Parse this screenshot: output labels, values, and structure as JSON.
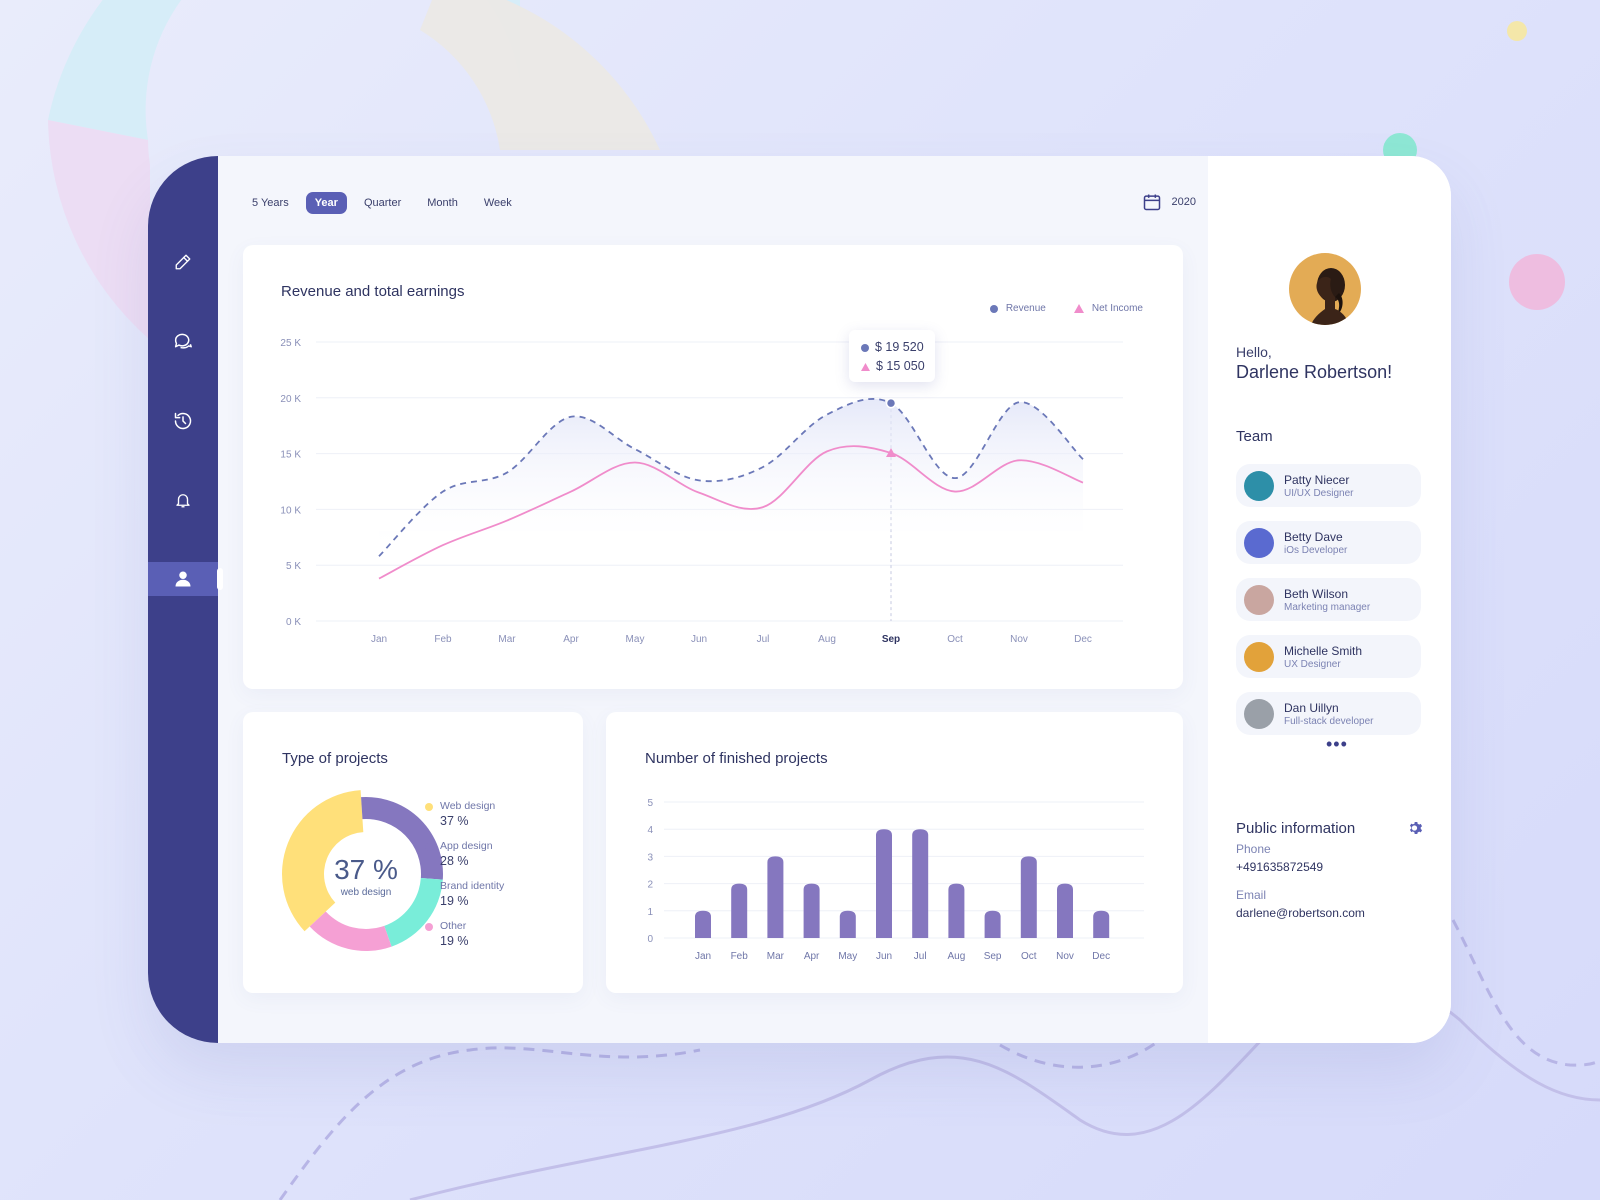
{
  "colors": {
    "sidebar": "#3d408a",
    "accent": "#5a5fb5",
    "revenue": "#6b78b8",
    "net_income": "#f08ccb",
    "bar": "#8577bf",
    "web_design": "#ffe07a",
    "app_design": "#8577bf",
    "brand_identity": "#79edd9",
    "other": "#f5a0d4"
  },
  "sidebar": {
    "items": [
      {
        "icon": "pencil-icon"
      },
      {
        "icon": "chat-icon"
      },
      {
        "icon": "history-icon"
      },
      {
        "icon": "bell-icon"
      },
      {
        "icon": "user-icon",
        "active": true
      }
    ]
  },
  "period_tabs": [
    {
      "label": "5 Years"
    },
    {
      "label": "Year",
      "active": true
    },
    {
      "label": "Quarter"
    },
    {
      "label": "Month"
    },
    {
      "label": "Week"
    }
  ],
  "year_selector": {
    "icon": "calendar-icon",
    "value": "2020"
  },
  "revenue_chart": {
    "title": "Revenue and total earnings",
    "tooltip": {
      "revenue": "$ 19 520",
      "net_income": "$ 15 050"
    },
    "selected_month": "Sep"
  },
  "type_chart": {
    "title": "Type of projects",
    "center_value": "37 %",
    "center_label": "web design",
    "legend": [
      {
        "label": "Web design",
        "value": "37 %"
      },
      {
        "label": "App design",
        "value": "28 %"
      },
      {
        "label": "Brand identity",
        "value": "19 %"
      },
      {
        "label": "Other",
        "value": "19 %"
      }
    ]
  },
  "finished_chart": {
    "title": "Number of finished projects"
  },
  "chart_data": [
    {
      "type": "area",
      "title": "Revenue and total earnings",
      "categories": [
        "Jan",
        "Feb",
        "Mar",
        "Apr",
        "May",
        "Jun",
        "Jul",
        "Aug",
        "Sep",
        "Oct",
        "Nov",
        "Dec"
      ],
      "ylim": [
        0,
        25
      ],
      "yticks": [
        "0 K",
        "5 K",
        "10 K",
        "15 K",
        "20 K",
        "25 K"
      ],
      "series": [
        {
          "name": "Revenue",
          "values": [
            5.8,
            11.6,
            13.3,
            18.3,
            15.4,
            12.6,
            13.8,
            18.5,
            19.52,
            12.8,
            19.6,
            14.5
          ]
        },
        {
          "name": "Net Income",
          "values": [
            3.8,
            6.8,
            9.0,
            11.6,
            14.2,
            11.5,
            10.2,
            15.2,
            15.05,
            11.6,
            14.4,
            12.4
          ]
        }
      ],
      "legend_position": "top-right",
      "grid": true
    },
    {
      "type": "pie",
      "title": "Type of projects",
      "categories": [
        "Web design",
        "App design",
        "Brand identity",
        "Other"
      ],
      "values": [
        37,
        28,
        19,
        19
      ]
    },
    {
      "type": "bar",
      "title": "Number of finished projects",
      "categories": [
        "Jan",
        "Feb",
        "Mar",
        "Apr",
        "May",
        "Jun",
        "Jul",
        "Aug",
        "Sep",
        "Oct",
        "Nov",
        "Dec"
      ],
      "values": [
        1,
        2,
        3,
        2,
        1,
        4,
        4,
        2,
        1,
        3,
        2,
        1
      ],
      "ylim": [
        0,
        5
      ],
      "yticks": [
        "0",
        "1",
        "2",
        "3",
        "4",
        "5"
      ],
      "grid": true
    }
  ],
  "profile": {
    "greeting": "Hello,",
    "name": "Darlene Robertson!",
    "avatar": "avatar"
  },
  "team": {
    "title": "Team",
    "members": [
      {
        "name": "Patty Niecer",
        "role": "UI/UX Designer",
        "avatar_color": "#2d8fa8"
      },
      {
        "name": "Betty Dave",
        "role": "iOs Developer",
        "avatar_color": "#5a6ad0"
      },
      {
        "name": "Beth Wilson",
        "role": "Marketing manager",
        "avatar_color": "#c9a6a0"
      },
      {
        "name": "Michelle Smith",
        "role": "UX Designer",
        "avatar_color": "#e2a23a"
      },
      {
        "name": "Dan Uillyn",
        "role": "Full-stack developer",
        "avatar_color": "#9aa0a8"
      }
    ],
    "more": "•••"
  },
  "public_info": {
    "title": "Public information",
    "phone_label": "Phone",
    "phone": "+491635872549",
    "email_label": "Email",
    "email": "darlene@robertson.com"
  }
}
